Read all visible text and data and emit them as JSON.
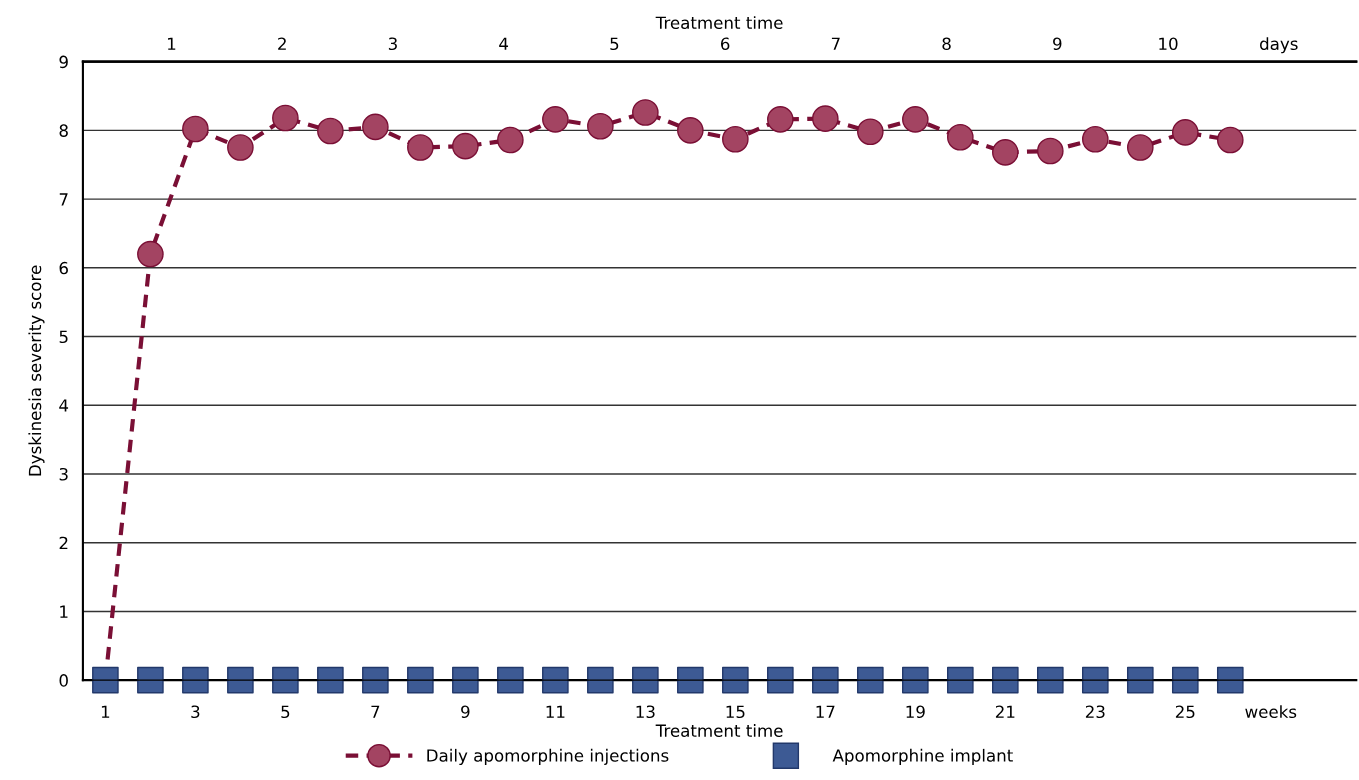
{
  "chart_data": {
    "type": "line",
    "xlabel": "Treatment time",
    "x2label": "Treatment time",
    "ylabel": "Dyskinesia severity score",
    "x": [
      1,
      2,
      3,
      4,
      5,
      6,
      7,
      8,
      9,
      10,
      11,
      12,
      13,
      14,
      15,
      16,
      17,
      18,
      19,
      20,
      21,
      22,
      23,
      24,
      25,
      26
    ],
    "series": [
      {
        "name": "Daily apomorphine injections",
        "color": "#7a0f35",
        "marker": "circle",
        "line_style": "dashed",
        "values": [
          0,
          6.2,
          8.02,
          7.75,
          8.18,
          7.99,
          8.05,
          7.75,
          7.77,
          7.86,
          8.16,
          8.06,
          8.26,
          8.0,
          7.87,
          8.16,
          8.17,
          7.98,
          8.16,
          7.9,
          7.68,
          7.7,
          7.87,
          7.75,
          7.97,
          7.86
        ]
      },
      {
        "name": "Apomorphine implant",
        "type": "scatter",
        "color": "#3d5a94",
        "marker": "square",
        "values": [
          0,
          0,
          0,
          0,
          0,
          0,
          0,
          0,
          0,
          0,
          0,
          0,
          0,
          0,
          0,
          0,
          0,
          0,
          0,
          0,
          0,
          0,
          0,
          0,
          0,
          0
        ]
      }
    ],
    "xlim": [
      0.5,
      28.8
    ],
    "xticks": [
      1,
      3,
      5,
      7,
      9,
      11,
      13,
      15,
      17,
      19,
      21,
      23,
      25,
      {
        "value": 26.9,
        "label": "weeks"
      }
    ],
    "x2lim": [
      0.2,
      11.7
    ],
    "x2ticks": [
      1,
      2,
      3,
      4,
      5,
      6,
      7,
      8,
      9,
      10,
      {
        "value": 11.0,
        "label": "days"
      }
    ],
    "ylim": [
      0,
      9
    ],
    "yticks": [
      0,
      1,
      2,
      3,
      4,
      5,
      6,
      7,
      8,
      9
    ],
    "grid": "y",
    "legend": "bottom"
  }
}
